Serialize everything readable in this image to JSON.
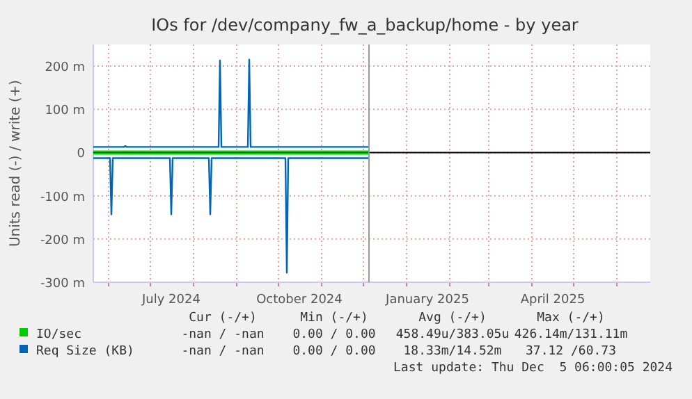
{
  "chart_data": {
    "type": "line",
    "title": "IOs for /dev/company_fw_a_backup/home - by year",
    "ylabel": "Units read (-) / write (+)",
    "xlim": [
      "2024-05-21",
      "2025-06-25"
    ],
    "xticks": [
      {
        "value": "2024-06-01",
        "label": null
      },
      {
        "value": "2024-07-01",
        "label": null
      },
      {
        "value": "2024-07-16",
        "label": "July 2024"
      },
      {
        "value": "2024-08-01",
        "label": null
      },
      {
        "value": "2024-09-01",
        "label": null
      },
      {
        "value": "2024-10-01",
        "label": null
      },
      {
        "value": "2024-10-16",
        "label": "October 2024"
      },
      {
        "value": "2024-11-01",
        "label": null
      },
      {
        "value": "2024-12-01",
        "label": null
      },
      {
        "value": "2025-01-01",
        "label": null
      },
      {
        "value": "2025-01-16",
        "label": "January 2025"
      },
      {
        "value": "2025-02-01",
        "label": null
      },
      {
        "value": "2025-03-01",
        "label": null
      },
      {
        "value": "2025-04-01",
        "label": null
      },
      {
        "value": "2025-04-16",
        "label": "April 2025"
      },
      {
        "value": "2025-05-01",
        "label": null
      },
      {
        "value": "2025-06-01",
        "label": null
      }
    ],
    "ylim": [
      -300,
      250
    ],
    "yticks": [
      {
        "value": -300,
        "label": "-300 m"
      },
      {
        "value": -200,
        "label": "-200 m"
      },
      {
        "value": -100,
        "label": "-100 m"
      },
      0,
      {
        "value": 100,
        "label": "100 m"
      },
      {
        "value": 200,
        "label": "200 m"
      }
    ],
    "grid": true,
    "legend": "bottom",
    "series": [
      {
        "name": "IO/sec",
        "color": "#00cc00",
        "x": [
          "2024-05-21",
          "2024-12-05"
        ],
        "values": [
          3,
          3
        ]
      },
      {
        "color": "#00cc00",
        "x": [
          "2024-05-21",
          "2024-12-05"
        ],
        "values": [
          -3,
          -3
        ]
      },
      {
        "name": "Req Size (KB)",
        "color": "#0066b3",
        "x": [
          "2024-05-21",
          "2024-06-12",
          "2024-06-13",
          "2024-06-14",
          "2024-08-19",
          "2024-08-20",
          "2024-08-21",
          "2024-09-09",
          "2024-09-10",
          "2024-09-11",
          "2024-12-05"
        ],
        "values": [
          13,
          13,
          15,
          13,
          13,
          213,
          13,
          13,
          215,
          13,
          13
        ]
      },
      {
        "color": "#0066b3",
        "x": [
          "2024-05-21",
          "2024-06-02",
          "2024-06-03",
          "2024-06-04",
          "2024-07-15",
          "2024-07-16",
          "2024-07-17",
          "2024-08-12",
          "2024-08-13",
          "2024-08-14",
          "2024-10-06",
          "2024-10-07",
          "2024-10-08",
          "2024-12-05"
        ],
        "values": [
          -13,
          -13,
          -143,
          -13,
          -13,
          -143,
          -13,
          -13,
          -143,
          -13,
          -13,
          -278,
          -13,
          -13
        ]
      }
    ],
    "ref_lines": [
      {
        "axis": "x",
        "value": "2024-12-05",
        "color": "#999999"
      }
    ],
    "annotations": [
      "Cur (-/+)",
      "Min (-/+)",
      "Avg (-/+)",
      "Max (-/+)",
      "-nan / -nan",
      "0.00 / 0.00",
      "458.49u/383.05u",
      "426.14m/131.11m",
      "-nan / -nan",
      "0.00 / 0.00",
      "18.33m/14.52m",
      "37.12 /60.73",
      "Last update: Thu Dec  5 06:00:05 2024"
    ]
  }
}
